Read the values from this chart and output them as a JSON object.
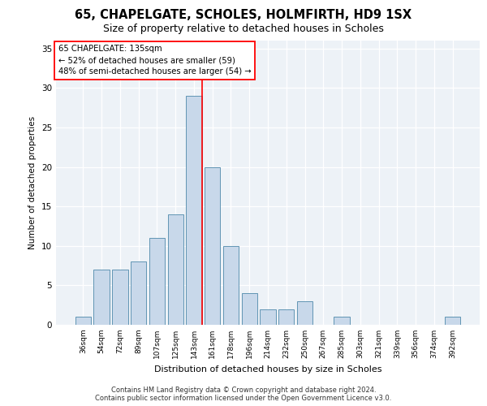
{
  "title1": "65, CHAPELGATE, SCHOLES, HOLMFIRTH, HD9 1SX",
  "title2": "Size of property relative to detached houses in Scholes",
  "xlabel": "Distribution of detached houses by size in Scholes",
  "ylabel": "Number of detached properties",
  "bar_labels": [
    "36sqm",
    "54sqm",
    "72sqm",
    "89sqm",
    "107sqm",
    "125sqm",
    "143sqm",
    "161sqm",
    "178sqm",
    "196sqm",
    "214sqm",
    "232sqm",
    "250sqm",
    "267sqm",
    "285sqm",
    "303sqm",
    "321sqm",
    "339sqm",
    "356sqm",
    "374sqm",
    "392sqm"
  ],
  "bar_values": [
    1,
    7,
    7,
    8,
    11,
    14,
    29,
    20,
    10,
    4,
    2,
    2,
    3,
    0,
    1,
    0,
    0,
    0,
    0,
    0,
    1
  ],
  "bar_color": "#c8d8ea",
  "bar_edge_color": "#4d88aa",
  "red_line_index": 6,
  "annotation_lines": [
    "65 CHAPELGATE: 135sqm",
    "← 52% of detached houses are smaller (59)",
    "48% of semi-detached houses are larger (54) →"
  ],
  "ylim": [
    0,
    36
  ],
  "yticks": [
    0,
    5,
    10,
    15,
    20,
    25,
    30,
    35
  ],
  "bg_color": "#edf2f7",
  "grid_color": "#ffffff",
  "footer_line1": "Contains HM Land Registry data © Crown copyright and database right 2024.",
  "footer_line2": "Contains public sector information licensed under the Open Government Licence v3.0."
}
